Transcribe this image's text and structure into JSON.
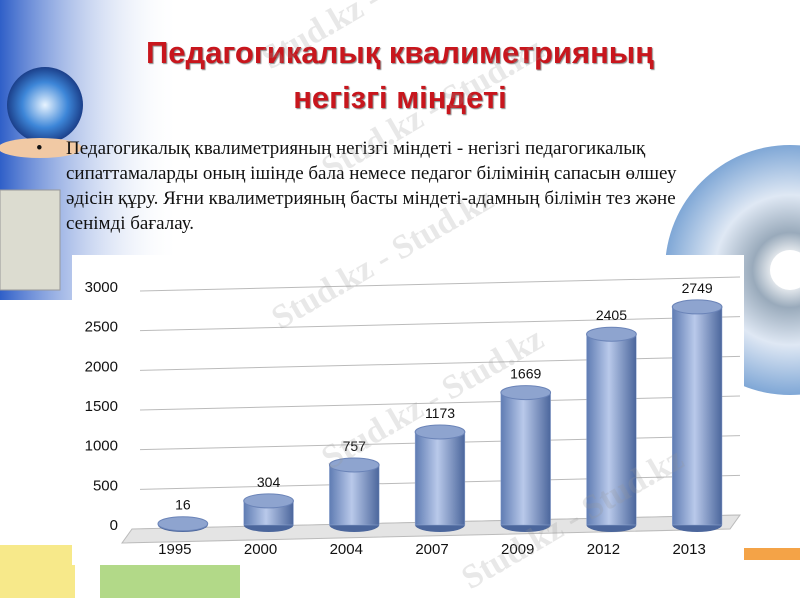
{
  "slide": {
    "title": "Педагогикалық квалиметрияның негізгі міндеті",
    "bullet": "Педагогикалық квалиметрияның негізгі міндеті - негізгі педагогикалық сипаттамаларды оның ішінде бала немесе педагог білімінің сапасын өлшеу әдісін құру. Яғни квалиметрияның басты міндеті-адамның білімін тез және сенімді бағалау.",
    "watermark": "Stud.kz - Stud.kz"
  },
  "chart_data": {
    "type": "bar",
    "categories": [
      "1995",
      "2000",
      "2004",
      "2007",
      "2009",
      "2012",
      "2013"
    ],
    "values": [
      16,
      304,
      757,
      1173,
      1669,
      2405,
      2749
    ],
    "color": "#8ea4cf",
    "ylim": [
      0,
      3000
    ],
    "yticks": [
      0,
      500,
      1000,
      1500,
      2000,
      2500,
      3000
    ],
    "grid": true
  }
}
